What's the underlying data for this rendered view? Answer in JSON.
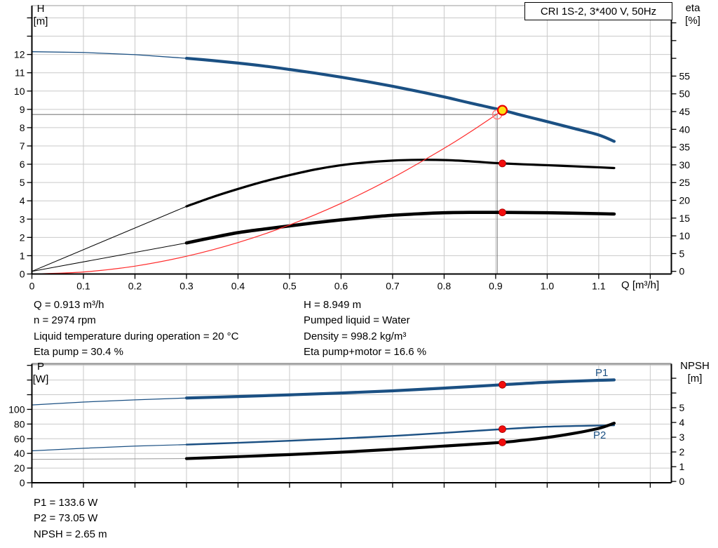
{
  "title_box": {
    "label": "CRI 1S-2, 3*400 V, 50Hz"
  },
  "labels": {
    "h_title_1": "H",
    "h_title_2": "[m]",
    "eta_title_1": "eta",
    "eta_title_2": "[%]",
    "q_title": "Q [m³/h]",
    "p_title_1": "P",
    "p_title_2": "[W]",
    "npsh_title_1": "NPSH",
    "npsh_title_2": "[m]",
    "p1_series": "P1",
    "p2_series": "P2"
  },
  "annotations": {
    "left": [
      "Q = 0.913 m³/h",
      "n = 2974 rpm",
      "Liquid temperature during operation = 20 °C",
      "Eta pump = 30.4 %"
    ],
    "right": [
      "H = 8.949 m",
      "Pumped liquid = Water",
      "Density = 998.2 kg/m³",
      "Eta pump+motor = 16.6 %"
    ],
    "bottom": [
      "P1 = 133.6 W",
      "P2 = 73.05 W",
      "NPSH = 2.65 m"
    ]
  },
  "colors": {
    "curve_blue": "#1b5083",
    "black": "#000000",
    "red_curve": "#ff2a2a",
    "red_dot": "#f20d0d",
    "red_dot_edge": "#a00000",
    "yellow_dot": "#ffe012",
    "yellow_dot_edge": "#e80000",
    "open_circle": "#ff7777",
    "crosshair": "#7d7d7d",
    "grid": "#c9c9c9",
    "axis": "#000000",
    "top_border": "#9a9a9a",
    "thin_gray": "#999999"
  },
  "chart_data": [
    {
      "id": "top",
      "type": "line",
      "title": "CRI 1S-2, 3*400 V, 50Hz",
      "x_axis": {
        "label": "Q [m³/h]",
        "min": 0,
        "max": 1.241,
        "ticks": [
          {
            "v": 0,
            "l": "0"
          },
          {
            "v": 0.1,
            "l": "0.1"
          },
          {
            "v": 0.2,
            "l": "0.2"
          },
          {
            "v": 0.3,
            "l": "0.3"
          },
          {
            "v": 0.4,
            "l": "0.4"
          },
          {
            "v": 0.5,
            "l": "0.5"
          },
          {
            "v": 0.6,
            "l": "0.6"
          },
          {
            "v": 0.7,
            "l": "0.7"
          },
          {
            "v": 0.8,
            "l": "0.8"
          },
          {
            "v": 0.9,
            "l": "0.9"
          },
          {
            "v": 1.0,
            "l": "1.0"
          },
          {
            "v": 1.1,
            "l": "1.1"
          },
          {
            "v": 1.2,
            "l": ""
          }
        ],
        "grid": [
          0.1,
          0.2,
          0.3,
          0.4,
          0.5,
          0.6,
          0.7,
          0.8,
          0.9,
          1.0,
          1.1,
          1.2
        ],
        "show_tick_labels": true
      },
      "left_axis": {
        "label": "H [m]",
        "min": 0,
        "max": 14.67,
        "ticks": [
          {
            "v": 0,
            "l": "0"
          },
          {
            "v": 1,
            "l": "1"
          },
          {
            "v": 2,
            "l": "2"
          },
          {
            "v": 3,
            "l": "3"
          },
          {
            "v": 4,
            "l": "4"
          },
          {
            "v": 5,
            "l": "5"
          },
          {
            "v": 6,
            "l": "6"
          },
          {
            "v": 7,
            "l": "7"
          },
          {
            "v": 8,
            "l": "8"
          },
          {
            "v": 9,
            "l": "9"
          },
          {
            "v": 10,
            "l": "10"
          },
          {
            "v": 11,
            "l": "11"
          },
          {
            "v": 12,
            "l": "12"
          },
          {
            "v": 13,
            "l": ""
          },
          {
            "v": 14,
            "l": ""
          }
        ],
        "grid": [
          1,
          2,
          3,
          4,
          5,
          6,
          7,
          8,
          9,
          10,
          11,
          12,
          13,
          14
        ]
      },
      "right_axis": {
        "label": "eta [%]",
        "min": -0.75,
        "max": 74.85,
        "ticks": [
          {
            "v": 0,
            "l": "0"
          },
          {
            "v": 5,
            "l": "5"
          },
          {
            "v": 10,
            "l": "10"
          },
          {
            "v": 15,
            "l": "15"
          },
          {
            "v": 20,
            "l": "20"
          },
          {
            "v": 25,
            "l": "25"
          },
          {
            "v": 30,
            "l": "30"
          },
          {
            "v": 35,
            "l": "35"
          },
          {
            "v": 40,
            "l": "40"
          },
          {
            "v": 45,
            "l": "45"
          },
          {
            "v": 50,
            "l": "50"
          },
          {
            "v": 55,
            "l": "55"
          },
          {
            "v": 60,
            "l": ""
          },
          {
            "v": 65,
            "l": ""
          },
          {
            "v": 70,
            "l": ""
          }
        ],
        "grid": []
      },
      "series": [
        {
          "name": "head-curve",
          "axis": "left",
          "color": "curve_blue",
          "width": 4.2,
          "thin_width": 1.3,
          "thin_points": [
            [
              0,
              12.15
            ],
            [
              0.1,
              12.11
            ],
            [
              0.2,
              11.99
            ],
            [
              0.3,
              11.79
            ]
          ],
          "points": [
            [
              0.3,
              11.79
            ],
            [
              0.35,
              11.67
            ],
            [
              0.4,
              11.53
            ],
            [
              0.45,
              11.37
            ],
            [
              0.5,
              11.18
            ],
            [
              0.55,
              10.98
            ],
            [
              0.6,
              10.76
            ],
            [
              0.65,
              10.52
            ],
            [
              0.7,
              10.26
            ],
            [
              0.75,
              9.98
            ],
            [
              0.8,
              9.68
            ],
            [
              0.85,
              9.35
            ],
            [
              0.913,
              8.95
            ],
            [
              0.95,
              8.68
            ],
            [
              1.0,
              8.33
            ],
            [
              1.05,
              7.97
            ],
            [
              1.1,
              7.6
            ],
            [
              1.13,
              7.25
            ]
          ]
        },
        {
          "name": "eta-pump-curve",
          "axis": "right",
          "color": "black",
          "width": 3.2,
          "thin_width": 1.0,
          "thin_points": [
            [
              0,
              0
            ],
            [
              0.3,
              18.3
            ]
          ],
          "points": [
            [
              0.3,
              18.3
            ],
            [
              0.35,
              20.9
            ],
            [
              0.4,
              23.2
            ],
            [
              0.45,
              25.3
            ],
            [
              0.5,
              27.1
            ],
            [
              0.55,
              28.7
            ],
            [
              0.6,
              29.9
            ],
            [
              0.65,
              30.7
            ],
            [
              0.7,
              31.2
            ],
            [
              0.75,
              31.4
            ],
            [
              0.8,
              31.35
            ],
            [
              0.85,
              31.0
            ],
            [
              0.913,
              30.4
            ],
            [
              1.0,
              29.9
            ],
            [
              1.05,
              29.6
            ],
            [
              1.1,
              29.3
            ],
            [
              1.13,
              29.1
            ]
          ]
        },
        {
          "name": "eta-pump-motor-curve",
          "axis": "right",
          "color": "black",
          "width": 4.6,
          "thin_width": 1.0,
          "thin_points": [
            [
              0,
              0
            ],
            [
              0.3,
              8.0
            ]
          ],
          "points": [
            [
              0.3,
              8.0
            ],
            [
              0.35,
              9.5
            ],
            [
              0.4,
              10.9
            ],
            [
              0.45,
              11.9
            ],
            [
              0.5,
              12.8
            ],
            [
              0.55,
              13.7
            ],
            [
              0.6,
              14.5
            ],
            [
              0.65,
              15.2
            ],
            [
              0.7,
              15.8
            ],
            [
              0.75,
              16.2
            ],
            [
              0.8,
              16.5
            ],
            [
              0.85,
              16.6
            ],
            [
              0.913,
              16.6
            ],
            [
              1.0,
              16.5
            ],
            [
              1.1,
              16.25
            ],
            [
              1.13,
              16.15
            ]
          ]
        },
        {
          "name": "system-curve",
          "axis": "left",
          "color": "red_curve",
          "width": 1.2,
          "thin_width": 1.2,
          "thin_points": [],
          "points": [
            [
              0,
              0
            ],
            [
              0.1,
              0.11
            ],
            [
              0.2,
              0.43
            ],
            [
              0.3,
              0.97
            ],
            [
              0.4,
              1.72
            ],
            [
              0.5,
              2.68
            ],
            [
              0.6,
              3.86
            ],
            [
              0.7,
              5.26
            ],
            [
              0.8,
              6.87
            ],
            [
              0.85,
              7.75
            ],
            [
              0.9,
              8.69
            ],
            [
              0.916,
              9.0
            ]
          ]
        }
      ],
      "crosshair": {
        "h_value": 8.72,
        "h_axis": "left",
        "x_to": 0.903,
        "v_at_x": 0.903
      },
      "markers": [
        {
          "type": "open-circle",
          "x": 0.903,
          "axis": "left",
          "v": 8.72
        },
        {
          "type": "yellow-dot",
          "x": 0.913,
          "axis": "left",
          "v": 8.95
        },
        {
          "type": "red-dot",
          "x": 0.913,
          "axis": "right",
          "v": 30.4
        },
        {
          "type": "red-dot",
          "x": 0.913,
          "axis": "right",
          "v": 16.6
        }
      ],
      "duty_point": {
        "Q": 0.913,
        "H": 8.949,
        "eta_pump": 30.4,
        "eta_pump_motor": 16.6
      }
    },
    {
      "id": "bottom",
      "type": "line",
      "x_axis": {
        "label": "",
        "min": 0,
        "max": 1.241,
        "ticks": [
          {
            "v": 0,
            "l": ""
          },
          {
            "v": 0.1,
            "l": ""
          },
          {
            "v": 0.2,
            "l": ""
          },
          {
            "v": 0.3,
            "l": ""
          },
          {
            "v": 0.4,
            "l": ""
          },
          {
            "v": 0.5,
            "l": ""
          },
          {
            "v": 0.6,
            "l": ""
          },
          {
            "v": 0.7,
            "l": ""
          },
          {
            "v": 0.8,
            "l": ""
          },
          {
            "v": 0.9,
            "l": ""
          },
          {
            "v": 1.0,
            "l": ""
          },
          {
            "v": 1.1,
            "l": ""
          },
          {
            "v": 1.2,
            "l": ""
          }
        ],
        "grid": [
          0.1,
          0.2,
          0.3,
          0.4,
          0.5,
          0.6,
          0.7,
          0.8,
          0.9,
          1.0,
          1.1,
          1.2
        ],
        "show_tick_labels": false
      },
      "left_axis": {
        "label": "P [W]",
        "min": 0,
        "max": 162.1,
        "ticks": [
          {
            "v": 0,
            "l": "0"
          },
          {
            "v": 20,
            "l": "20"
          },
          {
            "v": 40,
            "l": "40"
          },
          {
            "v": 60,
            "l": "60"
          },
          {
            "v": 80,
            "l": "80"
          },
          {
            "v": 100,
            "l": "100"
          },
          {
            "v": 120,
            "l": ""
          },
          {
            "v": 140,
            "l": ""
          },
          {
            "v": 160,
            "l": ""
          }
        ],
        "grid": [
          20,
          40,
          60,
          80,
          100,
          120,
          140,
          160
        ]
      },
      "right_axis": {
        "label": "NPSH [m]",
        "min": -0.09,
        "max": 7.98,
        "ticks": [
          {
            "v": 0,
            "l": "0"
          },
          {
            "v": 1,
            "l": "1"
          },
          {
            "v": 2,
            "l": "2"
          },
          {
            "v": 3,
            "l": "3"
          },
          {
            "v": 4,
            "l": "4"
          },
          {
            "v": 5,
            "l": "5"
          },
          {
            "v": 6,
            "l": ""
          },
          {
            "v": 7,
            "l": ""
          }
        ],
        "grid": []
      },
      "series": [
        {
          "name": "p1-curve",
          "axis": "left",
          "color": "curve_blue",
          "width": 4.2,
          "thin_width": 1.2,
          "thin_points": [
            [
              0,
              106
            ],
            [
              0.1,
              110
            ],
            [
              0.2,
              113
            ],
            [
              0.3,
              115.5
            ]
          ],
          "points": [
            [
              0.3,
              115.5
            ],
            [
              0.4,
              117.5
            ],
            [
              0.5,
              119.8
            ],
            [
              0.6,
              122.3
            ],
            [
              0.7,
              125.3
            ],
            [
              0.8,
              129
            ],
            [
              0.913,
              133.6
            ],
            [
              1.0,
              137
            ],
            [
              1.1,
              139.6
            ],
            [
              1.13,
              140.2
            ]
          ]
        },
        {
          "name": "p2-curve",
          "axis": "left",
          "color": "curve_blue",
          "width": 2.4,
          "thin_width": 1.2,
          "thin_points": [
            [
              0,
              43.5
            ],
            [
              0.1,
              47
            ],
            [
              0.2,
              50
            ],
            [
              0.3,
              52
            ]
          ],
          "points": [
            [
              0.3,
              52
            ],
            [
              0.4,
              54.5
            ],
            [
              0.5,
              57.2
            ],
            [
              0.6,
              60.3
            ],
            [
              0.7,
              63.8
            ],
            [
              0.8,
              68
            ],
            [
              0.913,
              73.05
            ],
            [
              1.0,
              76.3
            ],
            [
              1.1,
              78
            ],
            [
              1.13,
              78.3
            ]
          ]
        },
        {
          "name": "npsh-curve",
          "axis": "right",
          "color": "black",
          "width": 4.2,
          "thin_width": 1.0,
          "thin_color": "thin_gray",
          "thin_points": [
            [
              0,
              1.5
            ],
            [
              0.3,
              1.55
            ]
          ],
          "points": [
            [
              0.3,
              1.55
            ],
            [
              0.4,
              1.68
            ],
            [
              0.5,
              1.82
            ],
            [
              0.6,
              1.98
            ],
            [
              0.7,
              2.18
            ],
            [
              0.8,
              2.4
            ],
            [
              0.913,
              2.65
            ],
            [
              0.95,
              2.78
            ],
            [
              1.0,
              2.98
            ],
            [
              1.05,
              3.25
            ],
            [
              1.1,
              3.6
            ],
            [
              1.13,
              3.95
            ]
          ]
        }
      ],
      "crosshair": null,
      "markers": [
        {
          "type": "red-dot",
          "x": 0.913,
          "axis": "left",
          "v": 133.6
        },
        {
          "type": "red-dot",
          "x": 0.913,
          "axis": "left",
          "v": 73.05
        },
        {
          "type": "red-dot",
          "x": 0.913,
          "axis": "right",
          "v": 2.65
        }
      ],
      "duty_point": {
        "Q": 0.913,
        "P1": 133.6,
        "P2": 73.05,
        "NPSH": 2.65
      }
    }
  ]
}
